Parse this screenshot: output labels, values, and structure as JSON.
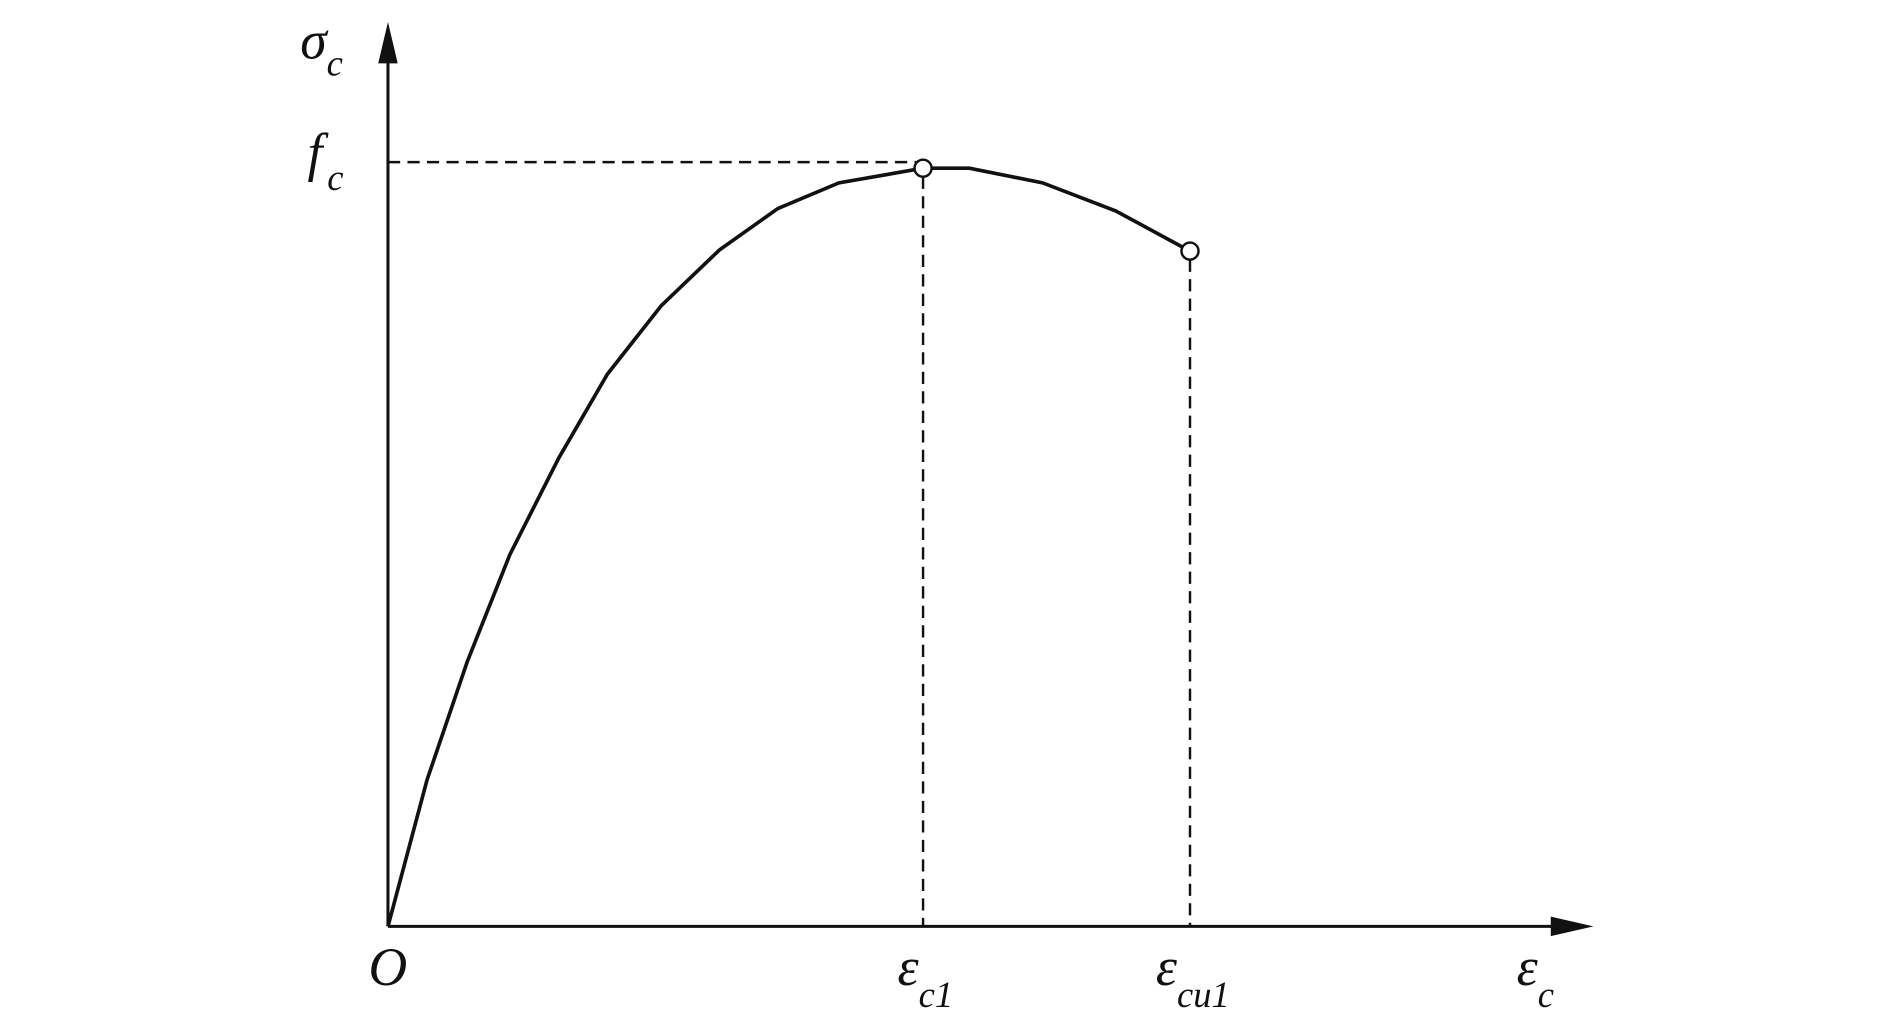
{
  "labels": {
    "y_axis": {
      "symbol": "σ",
      "subscript": "c"
    },
    "peak_stress": {
      "symbol": "f",
      "subscript": "c"
    },
    "origin": "O",
    "peak_strain": {
      "symbol": "ε",
      "subscript": "c1"
    },
    "ultimate_strain": {
      "symbol": "ε",
      "subscript": "cu1"
    },
    "x_axis": {
      "symbol": "ε",
      "subscript": "c"
    }
  }
}
